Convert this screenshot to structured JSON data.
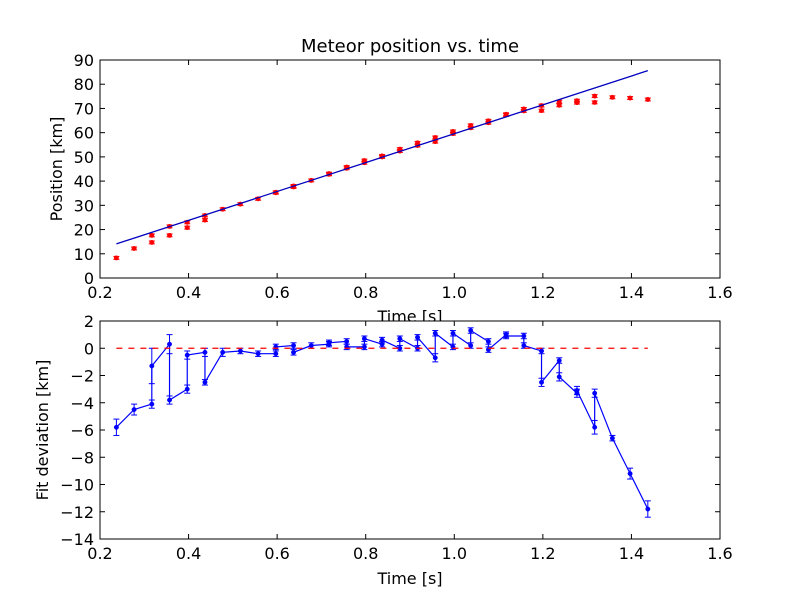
{
  "chart_data": [
    {
      "type": "scatter",
      "title": "Meteor position vs. time",
      "xlabel": "Time [s]",
      "ylabel": "Position [km]",
      "xlim": [
        0.2,
        1.6
      ],
      "ylim": [
        0,
        90
      ],
      "xticks": [
        "0.2",
        "0.4",
        "0.6",
        "0.8",
        "1.0",
        "1.2",
        "1.4",
        "1.6"
      ],
      "yticks": [
        "0",
        "10",
        "20",
        "30",
        "40",
        "50",
        "60",
        "70",
        "80",
        "90"
      ],
      "grid": false,
      "colors": {
        "points": "#ff0000",
        "fit": "#0000bf"
      },
      "series": [
        {
          "kind": "points_with_errorbars",
          "x": [
            0.237,
            0.277,
            0.317,
            0.317,
            0.357,
            0.357,
            0.397,
            0.397,
            0.437,
            0.437,
            0.477,
            0.517,
            0.557,
            0.597,
            0.597,
            0.637,
            0.637,
            0.677,
            0.717,
            0.717,
            0.757,
            0.757,
            0.797,
            0.797,
            0.837,
            0.837,
            0.877,
            0.877,
            0.917,
            0.917,
            0.957,
            0.957,
            0.997,
            0.997,
            1.037,
            1.037,
            1.077,
            1.077,
            1.117,
            1.117,
            1.157,
            1.157,
            1.197,
            1.197,
            1.237,
            1.237,
            1.277,
            1.277,
            1.317,
            1.317,
            1.357,
            1.397,
            1.437
          ],
          "y": [
            8.3,
            12.2,
            14.7,
            17.6,
            17.6,
            21.3,
            20.8,
            23.0,
            23.9,
            25.8,
            28.4,
            30.5,
            32.7,
            35.2,
            35.4,
            37.6,
            38.0,
            40.3,
            42.8,
            43.1,
            45.3,
            45.8,
            47.6,
            48.5,
            50.0,
            50.4,
            52.4,
            53.2,
            54.7,
            55.8,
            56.3,
            58.0,
            59.6,
            60.5,
            62.0,
            63.0,
            64.1,
            64.9,
            67.3,
            67.6,
            69.0,
            69.8,
            69.1,
            71.2,
            71.3,
            72.8,
            72.4,
            73.2,
            72.5,
            75.1,
            74.6,
            74.3,
            73.7
          ],
          "yerr": [
            0.6,
            0.6,
            0.6,
            0.6,
            0.6,
            0.6,
            0.6,
            0.6,
            0.6,
            0.6,
            0.6,
            0.6,
            0.6,
            0.6,
            0.6,
            0.6,
            0.6,
            0.6,
            0.6,
            0.6,
            0.6,
            0.6,
            0.6,
            0.6,
            0.6,
            0.6,
            0.6,
            0.6,
            0.6,
            0.6,
            0.6,
            0.6,
            0.6,
            0.6,
            0.6,
            0.6,
            0.6,
            0.6,
            0.6,
            0.6,
            0.6,
            0.6,
            0.6,
            0.6,
            0.6,
            0.6,
            0.6,
            0.6,
            0.6,
            0.6,
            0.6,
            0.6,
            0.6
          ]
        },
        {
          "kind": "line",
          "x": [
            0.237,
            1.437
          ],
          "y": [
            14.1,
            85.6
          ]
        }
      ]
    },
    {
      "type": "line",
      "title": "",
      "xlabel": "Time [s]",
      "ylabel": "Fit deviation [km]",
      "xlim": [
        0.2,
        1.6
      ],
      "ylim": [
        -14,
        2
      ],
      "xticks": [
        "0.2",
        "0.4",
        "0.6",
        "0.8",
        "1.0",
        "1.2",
        "1.4",
        "1.6"
      ],
      "yticks": [
        "2",
        "0",
        "−2",
        "−4",
        "−6",
        "−8",
        "−10",
        "−12",
        "−14"
      ],
      "grid": false,
      "colors": {
        "series": "#0000ff",
        "reference": "#ff0000"
      },
      "series": [
        {
          "kind": "line_with_errorbars",
          "x": [
            0.237,
            0.277,
            0.317,
            0.317,
            0.357,
            0.357,
            0.397,
            0.397,
            0.437,
            0.437,
            0.477,
            0.517,
            0.557,
            0.597,
            0.597,
            0.637,
            0.637,
            0.677,
            0.717,
            0.717,
            0.757,
            0.757,
            0.797,
            0.797,
            0.837,
            0.837,
            0.877,
            0.877,
            0.917,
            0.917,
            0.957,
            0.957,
            0.997,
            0.997,
            1.037,
            1.037,
            1.077,
            1.077,
            1.117,
            1.117,
            1.157,
            1.157,
            1.197,
            1.197,
            1.237,
            1.237,
            1.277,
            1.277,
            1.317,
            1.317,
            1.357,
            1.397,
            1.437
          ],
          "y": [
            -5.8,
            -4.5,
            -4.1,
            -1.3,
            0.3,
            -3.8,
            -3.0,
            -0.5,
            -0.3,
            -2.5,
            -0.3,
            -0.2,
            -0.4,
            -0.4,
            0.1,
            0.2,
            -0.3,
            0.2,
            0.3,
            0.4,
            0.5,
            0.1,
            0.1,
            0.7,
            0.3,
            0.6,
            0.0,
            0.7,
            0.0,
            0.8,
            -0.7,
            1.1,
            0.1,
            1.1,
            0.2,
            1.3,
            0.5,
            -0.1,
            1.0,
            0.9,
            0.9,
            0.2,
            -0.2,
            -2.5,
            -0.9,
            -2.1,
            -3.3,
            -3.1,
            -5.8,
            -3.3,
            -6.6,
            -9.2,
            -11.8
          ],
          "yerr": [
            0.6,
            0.4,
            0.3,
            1.3,
            0.7,
            0.3,
            0.3,
            0.3,
            0.3,
            0.2,
            0.3,
            0.2,
            0.2,
            0.2,
            0.2,
            0.2,
            0.2,
            0.2,
            0.2,
            0.2,
            0.2,
            0.2,
            0.2,
            0.2,
            0.2,
            0.2,
            0.2,
            0.2,
            0.2,
            0.2,
            0.3,
            0.2,
            0.2,
            0.2,
            0.2,
            0.2,
            0.2,
            0.2,
            0.2,
            0.2,
            0.2,
            0.2,
            0.2,
            0.3,
            0.2,
            0.3,
            0.3,
            0.3,
            0.5,
            0.3,
            0.2,
            0.4,
            0.6
          ]
        },
        {
          "kind": "reference_line",
          "x": [
            0.237,
            1.437
          ],
          "y": [
            0,
            0
          ],
          "style": "dashed"
        }
      ]
    }
  ]
}
